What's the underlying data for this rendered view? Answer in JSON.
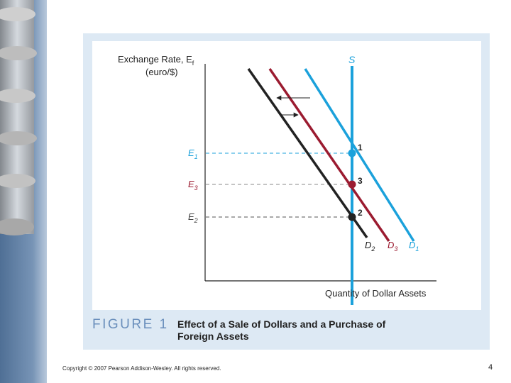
{
  "figure": {
    "y_axis_label": {
      "main": "Exchange Rate, E",
      "sub": "f",
      "line2": "(euro/$)"
    },
    "x_axis_label": "Quantity of Dollar Assets",
    "supply_label": "S",
    "levels": [
      {
        "letter": "E",
        "sub": "1"
      },
      {
        "letter": "E",
        "sub": "3"
      },
      {
        "letter": "E",
        "sub": "2"
      }
    ],
    "curves": [
      {
        "letter": "D",
        "sub": "2"
      },
      {
        "letter": "D",
        "sub": "3"
      },
      {
        "letter": "D",
        "sub": "1"
      }
    ],
    "points": [
      "1",
      "3",
      "2"
    ],
    "caption": {
      "label": "FIGURE 1",
      "line1": "Effect of a Sale of Dollars and a Purchase of",
      "line2": "Foreign Assets"
    }
  },
  "footer": {
    "copyright": "Copyright © 2007 Pearson Addison-Wesley. All rights reserved.",
    "page_number": "4"
  }
}
